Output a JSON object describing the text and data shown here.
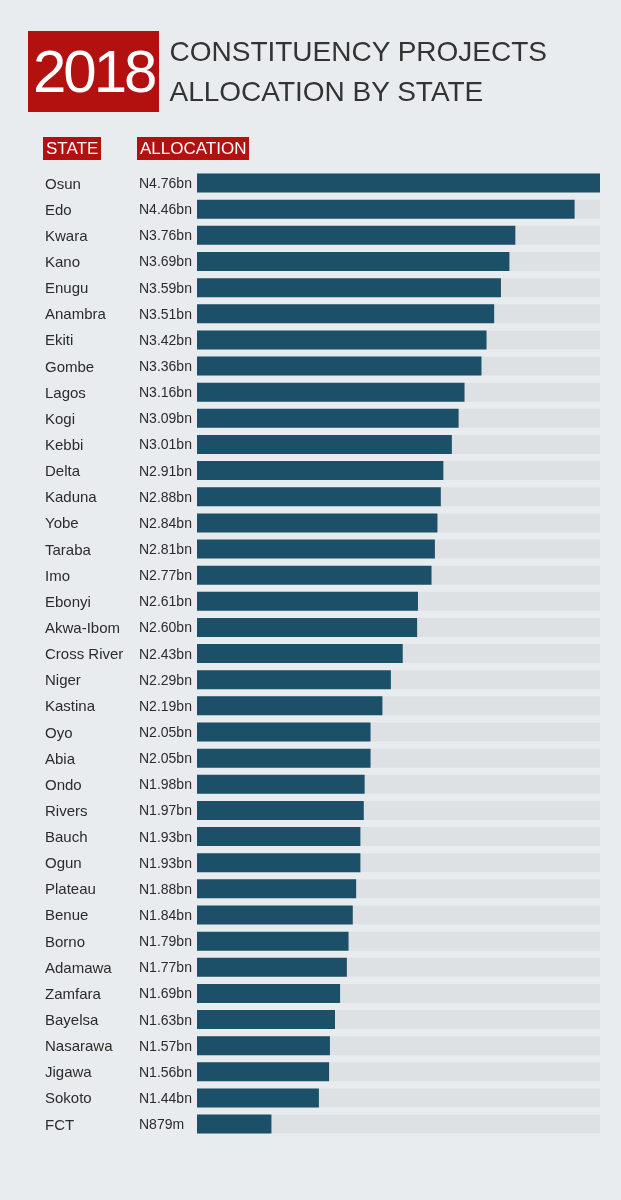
{
  "chart_data": {
    "type": "bar",
    "orientation": "horizontal",
    "title": "2018 CONSTITUENCY PROJECTS ALLOCATION BY STATE",
    "ylabel": "STATE",
    "xlabel": "ALLOCATION",
    "tick_labels": "y",
    "color": "#1b5068",
    "categories": [
      "Osun",
      "Edo",
      "Kwara",
      "Kano",
      "Enugu",
      "Anambra",
      "Ekiti",
      "Gombe",
      "Lagos",
      "Kogi",
      "Kebbi",
      "Delta",
      "Kaduna",
      "Yobe",
      "Taraba",
      "Imo",
      "Ebonyi",
      "Akwa-Ibom",
      "Cross River",
      "Niger",
      "Kastina",
      "Oyo",
      "Abia",
      "Ondo",
      "Rivers",
      "Bauch",
      "Ogun",
      "Plateau",
      "Benue",
      "Borno",
      "Adamawa",
      "Zamfara",
      "Bayelsa",
      "Nasarawa",
      "Jigawa",
      "Sokoto",
      "FCT"
    ],
    "values": [
      4760000000,
      4460000000,
      3760000000,
      3690000000,
      3590000000,
      3510000000,
      3420000000,
      3360000000,
      3160000000,
      3090000000,
      3010000000,
      2910000000,
      2880000000,
      2840000000,
      2810000000,
      2770000000,
      2610000000,
      2600000000,
      2430000000,
      2290000000,
      2190000000,
      2050000000,
      2050000000,
      1980000000,
      1970000000,
      1930000000,
      1930000000,
      1880000000,
      1840000000,
      1790000000,
      1770000000,
      1690000000,
      1630000000,
      1570000000,
      1560000000,
      1440000000,
      879000000
    ],
    "value_labels": [
      "N4.76bn",
      "N4.46bn",
      "N3.76bn",
      "N3.69bn",
      "N3.59bn",
      "N3.51bn",
      "N3.42bn",
      "N3.36bn",
      "N3.16bn",
      "N3.09bn",
      "N3.01bn",
      "N2.91bn",
      "N2.88bn",
      "N2.84bn",
      "N2.81bn",
      "N2.77bn",
      "N2.61bn",
      "N2.60bn",
      "N2.43bn",
      "N2.29bn",
      "N2.19bn",
      "N2.05bn",
      "N2.05bn",
      "N1.98bn",
      "N1.97bn",
      "N1.93bn",
      "N1.93bn",
      "N1.88bn",
      "N1.84bn",
      "N1.79bn",
      "N1.77bn",
      "N1.69bn",
      "N1.63bn",
      "N1.57bn",
      "N1.56bn",
      "N1.44bn",
      "N879m"
    ]
  }
}
